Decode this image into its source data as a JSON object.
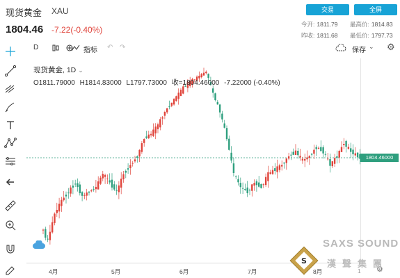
{
  "header": {
    "title": "现货黄金",
    "symbol": "XAU",
    "price": "1804.46",
    "change": "-7.22(-0.40%)",
    "trade_btn": "交易",
    "fullscreen_btn": "全屏",
    "stats": {
      "open_label": "今开:",
      "open": "1811.79",
      "high_label": "最高价:",
      "high": "1814.83",
      "prev_label": "昨收:",
      "prev": "1811.68",
      "low_label": "最低价:",
      "low": "1797.73"
    }
  },
  "toolbar": {
    "interval": "D",
    "indicators": "指标",
    "save": "保存"
  },
  "legend": {
    "name": "现货黄金,",
    "interval": "1D",
    "open": "O1811.79000",
    "high": "H1814.83000",
    "low": "L1797.73000",
    "close": "收=1804.46000",
    "change": "-7.22000 (-0.40%)"
  },
  "price_label": "1804.46000",
  "x_labels": [
    "4月",
    "5月",
    "6月",
    "7月",
    "8月",
    "1"
  ],
  "watermark": {
    "en": "SAXS SOUND",
    "cn": "漢聲集團"
  },
  "colors": {
    "up": "#e0443b",
    "down": "#2e9f7e",
    "accent": "#17a3d6"
  },
  "chart_data": {
    "type": "candlestick",
    "current_price": 1804.46,
    "x_ticks": [
      "4月",
      "5月",
      "6月",
      "7月",
      "8月"
    ],
    "close_trend": [
      1730,
      1715,
      1745,
      1760,
      1770,
      1780,
      1765,
      1770,
      1775,
      1790,
      1780,
      1770,
      1790,
      1800,
      1810,
      1830,
      1835,
      1845,
      1860,
      1870,
      1880,
      1890,
      1895,
      1900,
      1905,
      1880,
      1860,
      1830,
      1790,
      1775,
      1770,
      1780,
      1775,
      1790,
      1795,
      1800,
      1810,
      1815,
      1805,
      1810,
      1820,
      1815,
      1800,
      1810,
      1825,
      1815,
      1810,
      1805,
      1804
    ]
  }
}
